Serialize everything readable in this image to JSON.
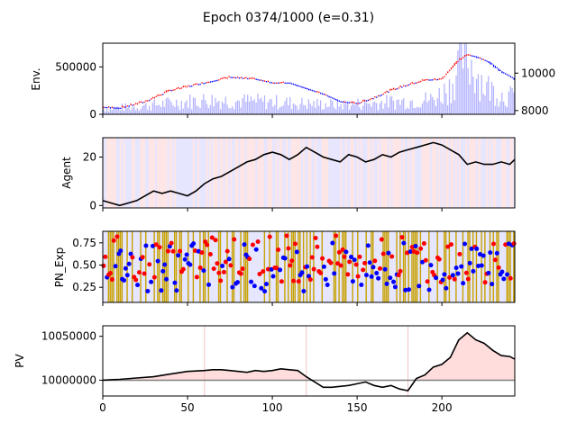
{
  "figure": {
    "title": "Epoch 0374/1000 (e=0.31)"
  },
  "chart_data": [
    {
      "type": "bar",
      "panel": "env",
      "ylabel": "Env.",
      "x_range": [
        0,
        243
      ],
      "left_axis": {
        "ylim": [
          0,
          750000
        ],
        "ticks": [
          0,
          500000
        ],
        "tick_labels": [
          "0",
          "500000"
        ]
      },
      "right_axis": {
        "ylim": [
          7800,
          11600
        ],
        "ticks": [
          8000,
          10000
        ],
        "tick_labels": [
          "8000",
          "10000"
        ]
      },
      "volume_color": "#b3b3ff",
      "price_candles": {
        "up_color": "#ff0000",
        "down_color": "#0000ff"
      },
      "price_keypoints": [
        [
          0,
          8200
        ],
        [
          10,
          8150
        ],
        [
          25,
          8500
        ],
        [
          40,
          9100
        ],
        [
          55,
          9400
        ],
        [
          65,
          9600
        ],
        [
          75,
          9800
        ],
        [
          90,
          9700
        ],
        [
          100,
          9500
        ],
        [
          110,
          9500
        ],
        [
          120,
          9200
        ],
        [
          130,
          8900
        ],
        [
          140,
          8500
        ],
        [
          150,
          8400
        ],
        [
          160,
          8700
        ],
        [
          170,
          9100
        ],
        [
          180,
          9400
        ],
        [
          190,
          9650
        ],
        [
          200,
          9700
        ],
        [
          205,
          10200
        ],
        [
          210,
          10700
        ],
        [
          215,
          11000
        ],
        [
          220,
          10900
        ],
        [
          228,
          10600
        ],
        [
          235,
          10100
        ],
        [
          243,
          9700
        ]
      ],
      "volume_keypoints": [
        [
          0,
          60000
        ],
        [
          20,
          80000
        ],
        [
          40,
          120000
        ],
        [
          60,
          150000
        ],
        [
          80,
          140000
        ],
        [
          100,
          130000
        ],
        [
          120,
          110000
        ],
        [
          140,
          100000
        ],
        [
          160,
          120000
        ],
        [
          180,
          140000
        ],
        [
          195,
          160000
        ],
        [
          205,
          300000
        ],
        [
          212,
          650000
        ],
        [
          218,
          500000
        ],
        [
          225,
          300000
        ],
        [
          235,
          200000
        ],
        [
          243,
          180000
        ]
      ]
    },
    {
      "type": "line",
      "panel": "agent",
      "ylabel": "Agent",
      "x_range": [
        0,
        243
      ],
      "ylim": [
        -1,
        28
      ],
      "ticks": [
        0,
        20
      ],
      "tick_labels": [
        "0",
        "20"
      ],
      "line_color": "#000000",
      "background_colors": {
        "buy": "#e6e6ff",
        "sell": "#ffe6e6"
      },
      "series": [
        {
          "x": [
            0,
            5,
            10,
            15,
            20,
            25,
            30,
            35,
            40,
            45,
            50,
            55,
            60,
            65,
            70,
            75,
            80,
            85,
            90,
            95,
            100,
            105,
            110,
            115,
            120,
            125,
            130,
            135,
            140,
            145,
            150,
            155,
            160,
            165,
            170,
            175,
            180,
            185,
            190,
            195,
            200,
            205,
            210,
            215,
            220,
            225,
            230,
            235,
            240,
            243
          ],
          "values": [
            2,
            1,
            0,
            1,
            2,
            4,
            6,
            5,
            6,
            5,
            4,
            6,
            9,
            11,
            12,
            14,
            16,
            18,
            19,
            21,
            22,
            21,
            19,
            21,
            24,
            22,
            20,
            19,
            18,
            21,
            20,
            18,
            19,
            21,
            20,
            22,
            23,
            24,
            25,
            26,
            25,
            23,
            21,
            17,
            18,
            17,
            17,
            18,
            17,
            19
          ]
        }
      ]
    },
    {
      "type": "scatter",
      "panel": "pn_exp",
      "ylabel": "PN_Exp",
      "x_range": [
        0,
        243
      ],
      "ylim": [
        0.08,
        0.88
      ],
      "ticks": [
        0.25,
        0.5,
        0.75
      ],
      "tick_labels": [
        "0.25",
        "0.50",
        "0.75"
      ],
      "band_color": "#c8a200",
      "background_color": "#e6e6ff",
      "point_colors": {
        "positive": "#ff0000",
        "negative": "#0000ff"
      },
      "point_count": 243
    },
    {
      "type": "area",
      "panel": "pv",
      "ylabel": "PV",
      "x_range": [
        0,
        243
      ],
      "ylim": [
        9982000,
        10062000
      ],
      "ticks": [
        10000000,
        10050000
      ],
      "tick_labels": [
        "10000000",
        "10050000"
      ],
      "x_ticks": [
        0,
        50,
        100,
        150,
        200
      ],
      "x_tick_labels": [
        "0",
        "50",
        "100",
        "150",
        "200"
      ],
      "baseline": 10000000,
      "baseline_color": "#808080",
      "fill_color": "#ffdddd",
      "line_color": "#000000",
      "vlines": [
        60,
        120,
        180
      ],
      "series": [
        {
          "x": [
            0,
            10,
            20,
            30,
            40,
            50,
            55,
            60,
            65,
            70,
            75,
            80,
            85,
            90,
            95,
            100,
            105,
            110,
            115,
            120,
            125,
            130,
            135,
            140,
            145,
            150,
            155,
            160,
            165,
            170,
            175,
            180,
            185,
            190,
            195,
            200,
            205,
            210,
            215,
            220,
            225,
            230,
            235,
            240,
            243
          ],
          "values": [
            10000000,
            10001000,
            10002500,
            10004000,
            10007000,
            10010000,
            10010500,
            10011000,
            10012000,
            10012000,
            10011000,
            10010000,
            10009000,
            10011000,
            10010000,
            10011000,
            10013000,
            10012000,
            10011000,
            10004000,
            9998000,
            9992000,
            9992000,
            9993000,
            9994000,
            9996000,
            9998000,
            9994000,
            9992000,
            9994000,
            9990000,
            9988000,
            10002000,
            10006000,
            10015000,
            10018000,
            10026000,
            10046000,
            10054000,
            10046000,
            10042000,
            10034000,
            10028000,
            10027000,
            10024000
          ]
        }
      ]
    }
  ]
}
